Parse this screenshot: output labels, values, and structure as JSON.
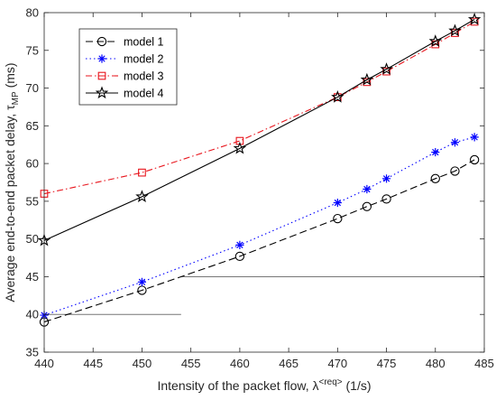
{
  "chart_data": {
    "type": "line",
    "xlabel": "Intensity of the packet flow, λ",
    "xlabel_superscript": "<req>",
    "xlabel_suffix": " (1/s)",
    "ylabel": "Average end-to-end packet delay, τ",
    "ylabel_subscript": "MP",
    "ylabel_suffix": " (ms)",
    "xlim": [
      440,
      485
    ],
    "ylim": [
      35,
      80
    ],
    "xticks": [
      440,
      445,
      450,
      455,
      460,
      465,
      470,
      475,
      480,
      485
    ],
    "yticks": [
      35,
      40,
      45,
      50,
      55,
      60,
      65,
      70,
      75,
      80
    ],
    "grid": false,
    "legend_position": "top-left",
    "series": [
      {
        "name": "model 1",
        "color": "#000000",
        "line_style": "dashed",
        "marker": "circle",
        "x": [
          440,
          450,
          460,
          470,
          473,
          475,
          480,
          482,
          484
        ],
        "y": [
          39.0,
          43.2,
          47.7,
          52.7,
          54.3,
          55.3,
          58.0,
          59.0,
          60.5
        ]
      },
      {
        "name": "model 2",
        "color": "#0000ff",
        "line_style": "dotted",
        "marker": "asterisk",
        "x": [
          440,
          450,
          460,
          470,
          473,
          475,
          480,
          482,
          484
        ],
        "y": [
          39.9,
          44.3,
          49.2,
          54.8,
          56.6,
          58.0,
          61.5,
          62.8,
          63.5
        ]
      },
      {
        "name": "model 3",
        "color": "#e8141c",
        "line_style": "dashdot",
        "marker": "square",
        "x": [
          440,
          450,
          460,
          470,
          473,
          475,
          480,
          482,
          484
        ],
        "y": [
          56.0,
          58.8,
          63.0,
          68.8,
          70.8,
          72.2,
          75.8,
          77.3,
          78.8
        ]
      },
      {
        "name": "model 4",
        "color": "#000000",
        "line_style": "solid",
        "marker": "star",
        "x": [
          440,
          450,
          460,
          470,
          473,
          475,
          480,
          482,
          484
        ],
        "y": [
          49.8,
          55.6,
          62.0,
          68.8,
          71.1,
          72.5,
          76.2,
          77.6,
          79.1
        ]
      }
    ],
    "reference_lines": [
      {
        "x": [
          440,
          454
        ],
        "y": [
          40,
          40
        ],
        "color": "#777777"
      },
      {
        "x": [
          454,
          485
        ],
        "y": [
          45,
          45
        ],
        "color": "#777777"
      }
    ]
  }
}
